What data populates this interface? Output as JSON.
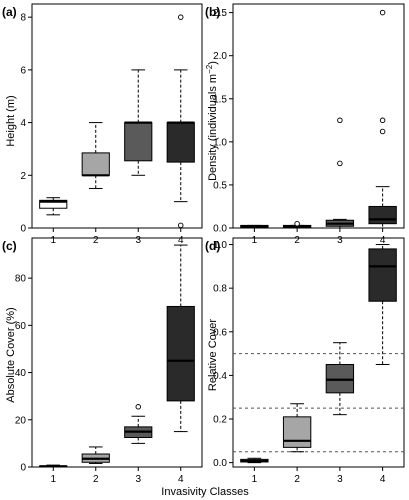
{
  "figure": {
    "xlabel": "Invasivity Classes"
  },
  "chart_data": [
    {
      "type": "box",
      "panel_label": "(a)",
      "ylabel": "Height (m)",
      "ylim": [
        0,
        8.5
      ],
      "yticks": [
        "0",
        "2",
        "4",
        "6",
        "8"
      ],
      "categories": [
        "1",
        "2",
        "3",
        "4"
      ],
      "boxes": [
        {
          "whisker_low": 0.5,
          "q1": 0.75,
          "median": 1.0,
          "q3": 1.05,
          "whisker_high": 1.15,
          "outliers": [],
          "fill": "#ffffff"
        },
        {
          "whisker_low": 1.5,
          "q1": 2.0,
          "median": 2.0,
          "q3": 2.85,
          "whisker_high": 4.0,
          "outliers": [],
          "fill": "#a6a6a6"
        },
        {
          "whisker_low": 2.0,
          "q1": 2.55,
          "median": 4.0,
          "q3": 4.0,
          "whisker_high": 6.0,
          "outliers": [],
          "fill": "#5a5a5a"
        },
        {
          "whisker_low": 1.0,
          "q1": 2.5,
          "median": 4.0,
          "q3": 4.0,
          "whisker_high": 6.0,
          "outliers": [
            0.1,
            8.0
          ],
          "fill": "#2a2a2a"
        }
      ],
      "hlines": []
    },
    {
      "type": "box",
      "panel_label": "(b)",
      "ylabel": "Density (individuals m",
      "ylabel_sup": "−2",
      "ylabel_close": ")",
      "ylim": [
        0,
        2.6
      ],
      "yticks": [
        "0.0",
        "0.5",
        "1.0",
        "1.5",
        "2.0",
        "2.5"
      ],
      "categories": [
        "1",
        "2",
        "3",
        "4"
      ],
      "boxes": [
        {
          "whisker_low": 0.0,
          "q1": 0.01,
          "median": 0.02,
          "q3": 0.03,
          "whisker_high": 0.03,
          "outliers": [],
          "fill": "#ffffff"
        },
        {
          "whisker_low": 0.0,
          "q1": 0.01,
          "median": 0.02,
          "q3": 0.03,
          "whisker_high": 0.03,
          "outliers": [
            0.05
          ],
          "fill": "#a6a6a6"
        },
        {
          "whisker_low": 0.0,
          "q1": 0.02,
          "median": 0.05,
          "q3": 0.09,
          "whisker_high": 0.1,
          "outliers": [
            0.75,
            1.25
          ],
          "fill": "#5a5a5a"
        },
        {
          "whisker_low": 0.0,
          "q1": 0.05,
          "median": 0.1,
          "q3": 0.25,
          "whisker_high": 0.48,
          "outliers": [
            1.12,
            1.25,
            2.5
          ],
          "fill": "#2a2a2a"
        }
      ],
      "hlines": []
    },
    {
      "type": "box",
      "panel_label": "(c)",
      "ylabel": "Absolute Cover (%)",
      "ylim": [
        0,
        97
      ],
      "yticks": [
        "0",
        "20",
        "40",
        "60",
        "80"
      ],
      "categories": [
        "1",
        "2",
        "3",
        "4"
      ],
      "boxes": [
        {
          "whisker_low": 0.0,
          "q1": 0.0,
          "median": 0.3,
          "q3": 0.5,
          "whisker_high": 0.8,
          "outliers": [],
          "fill": "#ffffff"
        },
        {
          "whisker_low": 1.5,
          "q1": 2.0,
          "median": 3.5,
          "q3": 5.5,
          "whisker_high": 8.5,
          "outliers": [],
          "fill": "#a6a6a6"
        },
        {
          "whisker_low": 10.0,
          "q1": 12.5,
          "median": 15.0,
          "q3": 17.0,
          "whisker_high": 21.5,
          "outliers": [
            25.5
          ],
          "fill": "#5a5a5a"
        },
        {
          "whisker_low": 15.0,
          "q1": 28.0,
          "median": 45.0,
          "q3": 68.0,
          "whisker_high": 94.0,
          "outliers": [],
          "fill": "#2a2a2a"
        }
      ],
      "hlines": []
    },
    {
      "type": "box",
      "panel_label": "(d)",
      "ylabel": "Relative Cover",
      "ylim": [
        -0.02,
        1.03
      ],
      "yticks": [
        "0.0",
        "0.2",
        "0.4",
        "0.6",
        "0.8",
        "1.0"
      ],
      "categories": [
        "1",
        "2",
        "3",
        "4"
      ],
      "boxes": [
        {
          "whisker_low": 0.0,
          "q1": 0.003,
          "median": 0.008,
          "q3": 0.015,
          "whisker_high": 0.02,
          "outliers": [],
          "fill": "#ffffff"
        },
        {
          "whisker_low": 0.05,
          "q1": 0.07,
          "median": 0.1,
          "q3": 0.21,
          "whisker_high": 0.27,
          "outliers": [],
          "fill": "#a6a6a6"
        },
        {
          "whisker_low": 0.22,
          "q1": 0.32,
          "median": 0.38,
          "q3": 0.45,
          "whisker_high": 0.55,
          "outliers": [],
          "fill": "#5a5a5a"
        },
        {
          "whisker_low": 0.45,
          "q1": 0.74,
          "median": 0.9,
          "q3": 0.98,
          "whisker_high": 1.0,
          "outliers": [],
          "fill": "#2a2a2a"
        }
      ],
      "hlines": [
        0.05,
        0.25,
        0.5
      ]
    }
  ]
}
